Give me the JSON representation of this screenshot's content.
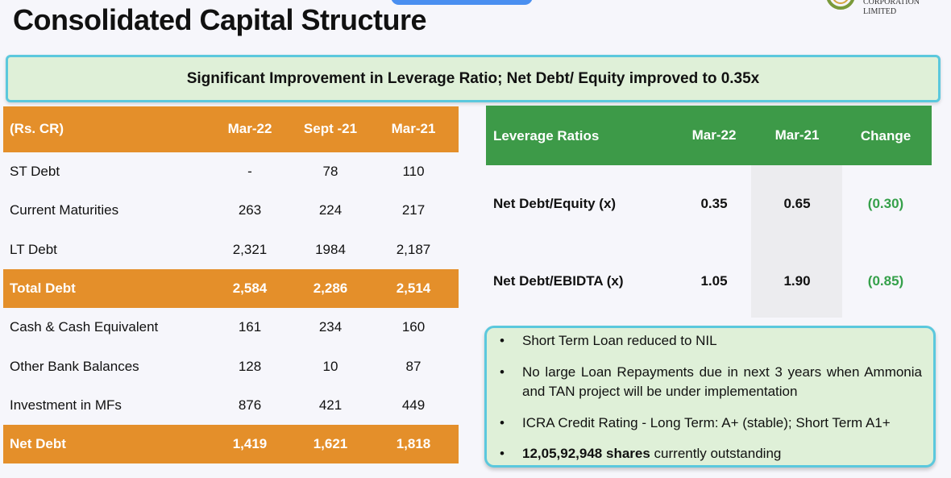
{
  "page": {
    "title": "Consolidated Capital Structure",
    "logo_text": "CORPORATION LIMITED"
  },
  "banner": {
    "text": "Significant Improvement in Leverage Ratio; Net Debt/ Equity improved to 0.35x"
  },
  "capital_table": {
    "headers": [
      "(Rs. CR)",
      "Mar-22",
      "Sept -21",
      "Mar-21"
    ],
    "rows": [
      {
        "label": "ST Debt",
        "values": [
          "-",
          "78",
          "110"
        ],
        "highlight": false
      },
      {
        "label": "Current Maturities",
        "values": [
          "263",
          "224",
          "217"
        ],
        "highlight": false
      },
      {
        "label": "LT Debt",
        "values": [
          "2,321",
          "1984",
          "2,187"
        ],
        "highlight": false
      },
      {
        "label": "Total Debt",
        "values": [
          "2,584",
          "2,286",
          "2,514"
        ],
        "highlight": true
      },
      {
        "label": "Cash & Cash Equivalent",
        "values": [
          "161",
          "234",
          "160"
        ],
        "highlight": false
      },
      {
        "label": "Other Bank Balances",
        "values": [
          "128",
          "10",
          "87"
        ],
        "highlight": false
      },
      {
        "label": "Investment in MFs",
        "values": [
          "876",
          "421",
          "449"
        ],
        "highlight": false
      },
      {
        "label": "Net Debt",
        "values": [
          "1,419",
          "1,621",
          "1,818"
        ],
        "highlight": true
      }
    ]
  },
  "leverage_table": {
    "headers": [
      "Leverage Ratios",
      "Mar-22",
      "Mar-21",
      "Change"
    ],
    "rows": [
      {
        "label": "Net Debt/Equity (x)",
        "values": [
          "0.35",
          "0.65",
          "(0.30)"
        ]
      },
      {
        "label": "Net Debt/EBIDTA (x)",
        "values": [
          "1.05",
          "1.90",
          "(0.85)"
        ]
      }
    ]
  },
  "notes": {
    "bullet": "•",
    "items": [
      {
        "bold": "",
        "text": "Short Term Loan reduced to NIL"
      },
      {
        "bold": "",
        "text": "No large Loan Repayments due in next 3 years when Ammonia and TAN project will be under implementation"
      },
      {
        "bold": "",
        "text": "ICRA Credit Rating - Long Term: A+ (stable); Short Term A1+"
      },
      {
        "bold": "12,05,92,948 shares",
        "text": " currently outstanding"
      }
    ]
  },
  "colors": {
    "orange": "#e48f2a",
    "green_header": "#3d9a48",
    "banner_bg": "#dff0d8",
    "border_cyan": "#5bc8dd",
    "change_green": "#35a04a"
  }
}
